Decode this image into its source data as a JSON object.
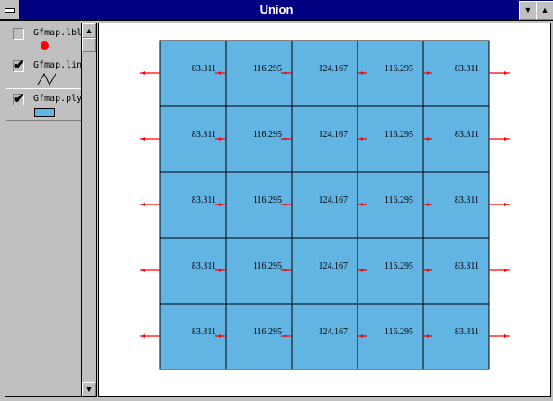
{
  "window": {
    "title": "Union",
    "scroll_down_icon": "▼",
    "scroll_up_icon": "▲"
  },
  "legend": {
    "items": [
      {
        "label": "Gfmap.lbl",
        "checked": false,
        "symbol": "red-dot"
      },
      {
        "label": "Gfmap.lin",
        "checked": true,
        "symbol": "line"
      },
      {
        "label": "Gfmap.ply",
        "checked": true,
        "symbol": "polygon"
      }
    ]
  },
  "colors": {
    "polygon_fill": "#62b4e3",
    "arrow": "#ff0000",
    "point": "#ff0000",
    "titlebar": "#000080"
  },
  "map": {
    "columns": 5,
    "rows": 5,
    "cell_values": [
      "83.311",
      "116.295",
      "124.167",
      "116.295",
      "83.311"
    ]
  }
}
